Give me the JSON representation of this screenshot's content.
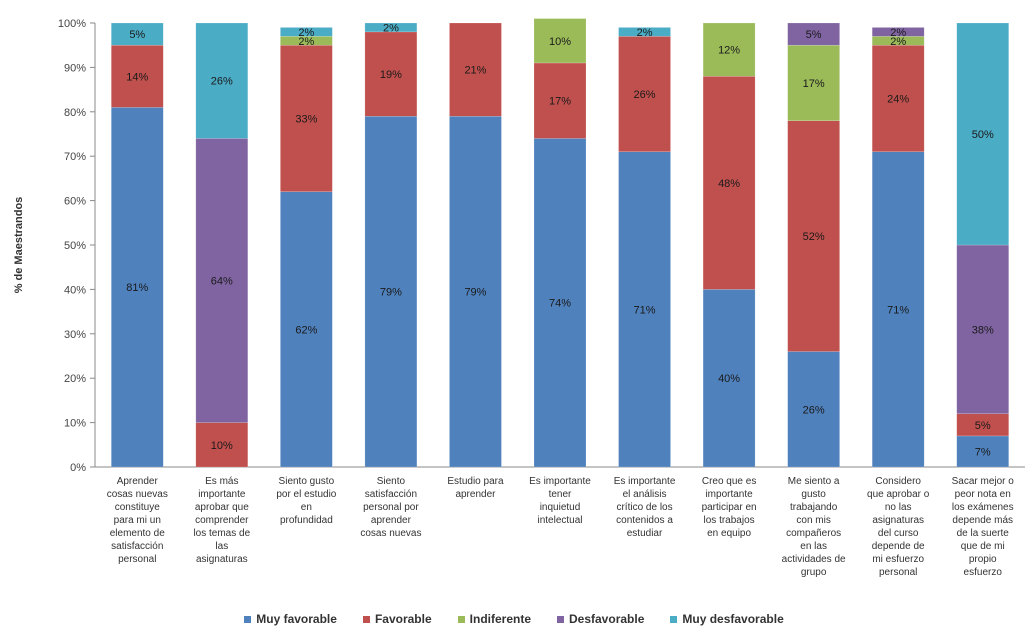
{
  "chart_data": {
    "type": "bar",
    "stacked": true,
    "title": "",
    "xlabel": "",
    "ylabel": "% de Maestrandos",
    "ylim": [
      0,
      100
    ],
    "yticks": [
      "0%",
      "10%",
      "20%",
      "30%",
      "40%",
      "50%",
      "60%",
      "70%",
      "80%",
      "90%",
      "100%"
    ],
    "grid": false,
    "legend_position": "bottom",
    "categories": [
      "Aprender cosas nuevas constituye para mi un elemento de satisfacción personal",
      "Es más importante aprobar que comprender los temas de las asignaturas",
      "Siento gusto por el estudio en profundidad",
      "Siento satisfacción personal por aprender cosas nuevas",
      "Estudio para aprender",
      "Es importante tener inquietud intelectual",
      "Es importante el análisis crítico de los contenidos a estudiar",
      "Creo que es importante participar en los trabajos en equipo",
      "Me siento a gusto trabajando con mis compañeros en las actividades de grupo",
      "Considero que aprobar o no las asignaturas del curso depende de mi esfuerzo personal",
      "Sacar mejor o peor nota en los exámenes depende más de la suerte que de mi propio esfuerzo"
    ],
    "category_lines": [
      [
        "Aprender",
        "cosas nuevas",
        "constituye",
        "para mi un",
        "elemento de",
        "satisfacción",
        "personal"
      ],
      [
        "Es más",
        "importante",
        "aprobar que",
        "comprender",
        "los temas de",
        "las",
        "asignaturas"
      ],
      [
        "Siento gusto",
        "por el estudio",
        "en",
        "profundidad"
      ],
      [
        "Siento",
        "satisfacción",
        "personal por",
        "aprender",
        "cosas nuevas"
      ],
      [
        "Estudio para",
        "aprender"
      ],
      [
        "Es importante",
        "tener",
        "inquietud",
        "intelectual"
      ],
      [
        "Es importante",
        "el análisis",
        "crítico de los",
        "contenidos a",
        "estudiar"
      ],
      [
        "Creo que es",
        "importante",
        "participar en",
        "los trabajos",
        "en equipo"
      ],
      [
        "Me siento a",
        "gusto",
        "trabajando",
        "con mis",
        "compañeros",
        "en las",
        "actividades de",
        "grupo"
      ],
      [
        "Considero",
        "que aprobar o",
        "no las",
        "asignaturas",
        "del curso",
        "depende de",
        "mi esfuerzo",
        "personal"
      ],
      [
        "Sacar mejor o",
        "peor nota en",
        "los exámenes",
        "depende más",
        "de la suerte",
        "que de mi",
        "propio",
        "esfuerzo"
      ]
    ],
    "series": [
      {
        "name": "Muy favorable",
        "color": "#4F81BD",
        "values": [
          81,
          0,
          62,
          79,
          79,
          74,
          71,
          40,
          26,
          71,
          7
        ]
      },
      {
        "name": "Favorable",
        "color": "#C0504D",
        "values": [
          14,
          10,
          33,
          19,
          21,
          17,
          26,
          48,
          52,
          24,
          5
        ]
      },
      {
        "name": "Indiferente",
        "color": "#9BBB59",
        "values": [
          0,
          0,
          2,
          0,
          0,
          10,
          0,
          12,
          17,
          2,
          0
        ]
      },
      {
        "name": "Desfavorable",
        "color": "#8064A2",
        "values": [
          0,
          64,
          0,
          0,
          0,
          0,
          0,
          0,
          5,
          2,
          38
        ]
      },
      {
        "name": "Muy desfavorable",
        "color": "#4BACC6",
        "values": [
          5,
          26,
          2,
          2,
          0,
          0,
          2,
          0,
          0,
          0,
          50
        ]
      }
    ],
    "data_labels": [
      [
        "81%",
        "",
        "62%",
        "79%",
        "79%",
        "74%",
        "71%",
        "40%",
        "26%",
        "71%",
        "7%"
      ],
      [
        "14%",
        "10%",
        "33%",
        "19%",
        "21%",
        "17%",
        "26%",
        "48%",
        "52%",
        "24%",
        "5%"
      ],
      [
        "",
        "",
        "2%",
        "",
        "",
        "10%",
        "",
        "12%",
        "17%",
        "2%",
        ""
      ],
      [
        "",
        "64%",
        "",
        "",
        "",
        "",
        "",
        "",
        "5%",
        "2%",
        "38%"
      ],
      [
        "5%",
        "26%",
        "2%",
        "2%",
        "",
        "",
        "2%",
        "",
        "",
        "",
        "50%"
      ]
    ]
  }
}
